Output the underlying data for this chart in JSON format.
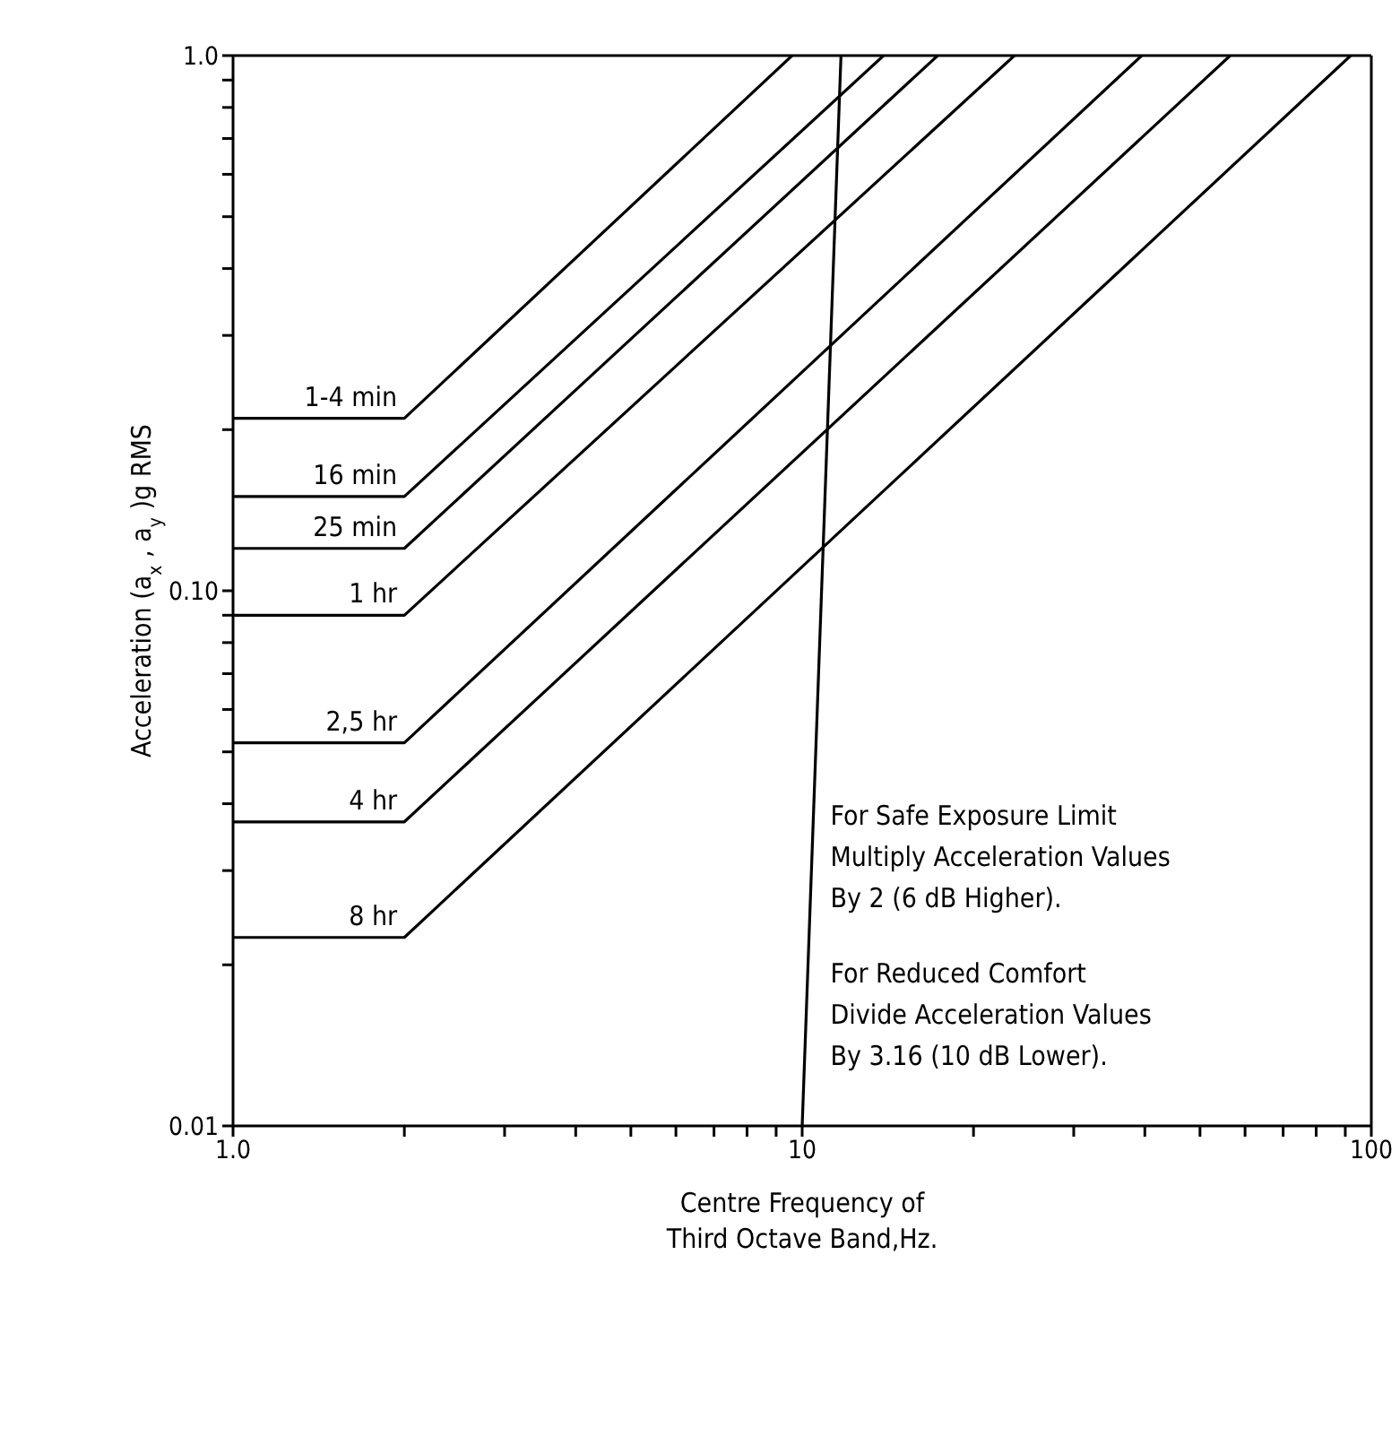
{
  "chart_data": {
    "type": "line",
    "xlabel": "Centre Frequency of\nThird Octave Band,Hz.",
    "ylabel": "Acceleration (a$_{x}$, a$_{y}$)g RMS",
    "log": "xy",
    "marker": "none",
    "line_style": "solid",
    "xlim": [
      1,
      100
    ],
    "ylim": [
      0.01,
      1
    ],
    "xticks": [
      {
        "value": 1,
        "label": "1.0"
      },
      {
        "value": 2,
        "label": null
      },
      {
        "value": 3,
        "label": null
      },
      {
        "value": 4,
        "label": null
      },
      {
        "value": 5,
        "label": null
      },
      {
        "value": 6,
        "label": null
      },
      {
        "value": 7,
        "label": null
      },
      {
        "value": 8,
        "label": null
      },
      {
        "value": 9,
        "label": null
      },
      10,
      {
        "value": 20,
        "label": null
      },
      {
        "value": 30,
        "label": null
      },
      {
        "value": 40,
        "label": null
      },
      {
        "value": 50,
        "label": null
      },
      {
        "value": 60,
        "label": null
      },
      {
        "value": 70,
        "label": null
      },
      {
        "value": 80,
        "label": null
      },
      {
        "value": 90,
        "label": null
      },
      100
    ],
    "yticks": [
      0.01,
      {
        "value": 0.02,
        "label": null
      },
      {
        "value": 0.03,
        "label": null
      },
      {
        "value": 0.04,
        "label": null
      },
      {
        "value": 0.05,
        "label": null
      },
      {
        "value": 0.06,
        "label": null
      },
      {
        "value": 0.07,
        "label": null
      },
      {
        "value": 0.08,
        "label": null
      },
      {
        "value": 0.09,
        "label": null
      },
      {
        "value": 0.1,
        "label": "0.10"
      },
      {
        "value": 0.2,
        "label": null
      },
      {
        "value": 0.3,
        "label": null
      },
      {
        "value": 0.4,
        "label": null
      },
      {
        "value": 0.5,
        "label": null
      },
      {
        "value": 0.6,
        "label": null
      },
      {
        "value": 0.7,
        "label": null
      },
      {
        "value": 0.8,
        "label": null
      },
      {
        "value": 0.9,
        "label": null
      },
      {
        "value": 1,
        "label": "1.0"
      }
    ],
    "series": [
      {
        "name": "1-4 min",
        "color": "#000000",
        "x": [
          1,
          2,
          9.6
        ],
        "values": [
          0.21,
          0.21,
          1
        ]
      },
      {
        "name": "16 min",
        "color": "#000000",
        "x": [
          1,
          2,
          13.9
        ],
        "values": [
          0.15,
          0.15,
          1
        ]
      },
      {
        "name": "25 min",
        "color": "#000000",
        "x": [
          1,
          2,
          17.3
        ],
        "values": [
          0.12,
          0.12,
          1
        ]
      },
      {
        "name": "1 hr",
        "color": "#000000",
        "x": [
          1,
          2,
          23.6
        ],
        "values": [
          0.09,
          0.09,
          1
        ]
      },
      {
        "name": "2,5 hr",
        "color": "#000000",
        "x": [
          1,
          2,
          39.5
        ],
        "values": [
          0.052,
          0.052,
          1
        ]
      },
      {
        "name": "4 hr",
        "color": "#000000",
        "x": [
          1,
          2,
          56.5
        ],
        "values": [
          0.037,
          0.037,
          1
        ]
      },
      {
        "name": "8 hr",
        "color": "#000000",
        "x": [
          1,
          2,
          92
        ],
        "values": [
          0.0225,
          0.0225,
          1
        ]
      },
      {
        "color": "#000000",
        "x": [
          10,
          11.7
        ],
        "values": [
          0.01,
          1
        ]
      }
    ],
    "annotations": [
      "For Safe Exposure Limit\nMultiply Acceleration Values\nBy 2 (6 dB Higher).",
      "For Reduced Comfort\nDivide Acceleration Values\nBy 3.16 (10 dB Lower)."
    ]
  }
}
